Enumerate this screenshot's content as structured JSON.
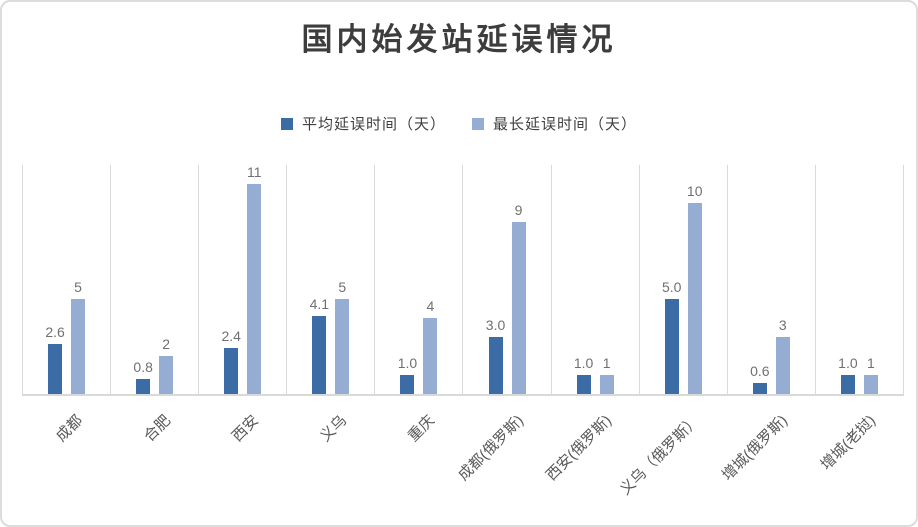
{
  "title": "国内始发站延误情况",
  "legend": {
    "items": [
      {
        "label": "平均延误时间（天）",
        "color": "#3c6ca6"
      },
      {
        "label": "最长延误时间（天）",
        "color": "#95add3"
      }
    ]
  },
  "colors": {
    "series_average": "#3c6ca6",
    "series_maximum": "#95add3",
    "gridline": "#d9d9d9",
    "axis_line": "#d9d9d9",
    "value_label": "#707070",
    "category_label": "#595959",
    "title_text": "#3d3d3d",
    "card_border": "#dcdcdc",
    "background": "#ffffff"
  },
  "chart_data": {
    "type": "bar",
    "title": "国内始发站延误情况",
    "categories": [
      "成都",
      "合肥",
      "西安",
      "义乌",
      "重庆",
      "成都(俄罗斯)",
      "西安(俄罗斯)",
      "义乌（俄罗斯）",
      "增城(俄罗斯)",
      "增城(老挝)"
    ],
    "series": [
      {
        "name": "平均延误时间（天）",
        "color": "#3c6ca6",
        "values": [
          2.6,
          0.8,
          2.4,
          4.1,
          1.0,
          3.0,
          1.0,
          5.0,
          0.6,
          1.0
        ],
        "labels": [
          "2.6",
          "0.8",
          "2.4",
          "4.1",
          "1.0",
          "3.0",
          "1.0",
          "5.0",
          "0.6",
          "1.0"
        ]
      },
      {
        "name": "最长延误时间（天）",
        "color": "#95add3",
        "values": [
          5,
          2,
          11,
          5,
          4,
          9,
          1,
          10,
          3,
          1
        ],
        "labels": [
          "5",
          "2",
          "11",
          "5",
          "4",
          "9",
          "1",
          "10",
          "3",
          "1"
        ]
      }
    ],
    "xlabel": "",
    "ylabel": "",
    "ylim": [
      0,
      12
    ],
    "y_axis_visible": false,
    "grid": "vertical-only",
    "legend_position": "top-center",
    "data_labels": true,
    "category_label_rotation_deg": 45
  }
}
